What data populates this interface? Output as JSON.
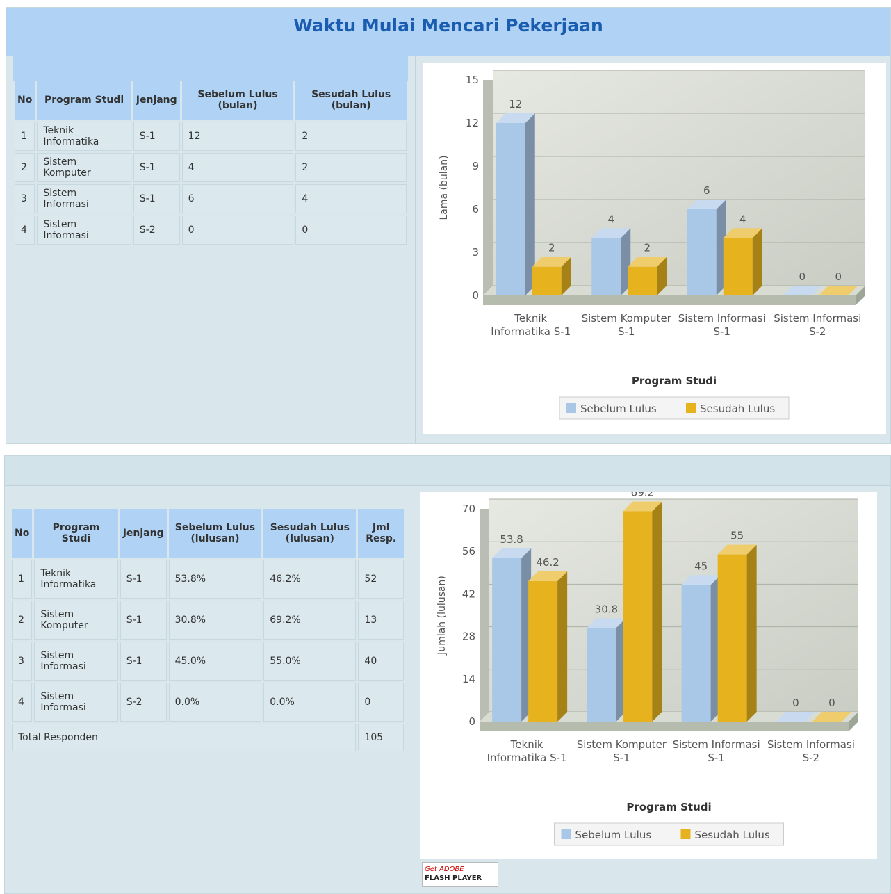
{
  "title": "Waktu Mulai Mencari Pekerjaan",
  "tables": [
    {
      "header": [
        "No",
        "Program Studi",
        "Jenjang",
        "Sebelum Lulus (bulan)",
        "Sesudah Lulus (bulan)"
      ],
      "rows": [
        [
          "1",
          "Teknik Informatika",
          "S-1",
          "12",
          "2"
        ],
        [
          "2",
          "Sistem Komputer",
          "S-1",
          "4",
          "2"
        ],
        [
          "3",
          "Sistem Informasi",
          "S-1",
          "6",
          "4"
        ],
        [
          "4",
          "Sistem Informasi",
          "S-2",
          "0",
          "0"
        ]
      ]
    },
    {
      "header": [
        "No",
        "Program Studi",
        "Jenjang",
        "Sebelum Lulus (lulusan)",
        "Sesudah Lulus (lulusan)",
        "Jml Resp."
      ],
      "rows": [
        [
          "1",
          "Teknik Informatika",
          "S-1",
          "53.8%",
          "46.2%",
          "52"
        ],
        [
          "2",
          "Sistem Komputer",
          "S-1",
          "30.8%",
          "69.2%",
          "13"
        ],
        [
          "3",
          "Sistem Informasi",
          "S-1",
          "45.0%",
          "55.0%",
          "40"
        ],
        [
          "4",
          "Sistem Informasi",
          "S-2",
          "0.0%",
          "0.0%",
          "0"
        ]
      ],
      "footer": [
        "Total Responden",
        "105"
      ]
    }
  ],
  "chart_data": [
    {
      "type": "bar",
      "y_label": "Lama (bulan)",
      "x_label": "Program Studi",
      "categories": [
        "Teknik Informatika S-1",
        "Sistem Komputer S-1",
        "Sistem Informasi S-1",
        "Sistem Informasi S-2"
      ],
      "series": [
        {
          "name": "Sebelum Lulus",
          "color": "#a9c7e6",
          "values": [
            12,
            4,
            6,
            0
          ]
        },
        {
          "name": "Sesudah Lulus",
          "color": "#e6b31e",
          "values": [
            2,
            2,
            4,
            0
          ]
        }
      ],
      "ylim": [
        0,
        15
      ],
      "yticks": [
        0,
        3,
        6,
        9,
        12,
        15
      ],
      "grid": true,
      "legend": "bottom"
    },
    {
      "type": "bar",
      "y_label": "Jumlah (lulusan)",
      "x_label": "Program Studi",
      "categories": [
        "Teknik Informatika S-1",
        "Sistem Komputer S-1",
        "Sistem Informasi S-1",
        "Sistem Informasi S-2"
      ],
      "series": [
        {
          "name": "Sebelum Lulus",
          "color": "#a9c7e6",
          "values": [
            53.8,
            30.8,
            45,
            0
          ]
        },
        {
          "name": "Sesudah Lulus",
          "color": "#e6b31e",
          "values": [
            46.2,
            69.2,
            55,
            0
          ]
        }
      ],
      "ylim": [
        0,
        70
      ],
      "yticks": [
        0,
        14,
        28,
        42,
        56,
        70
      ],
      "grid": true,
      "legend": "bottom"
    }
  ],
  "flash_badge": [
    "Get ADOBE",
    "FLASH PLAYER"
  ]
}
